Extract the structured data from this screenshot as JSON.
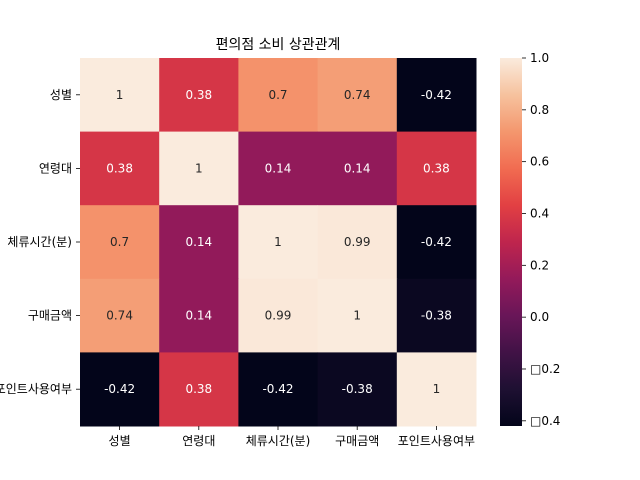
{
  "chart_data": {
    "type": "heatmap",
    "title": "편의점 소비 상관관계",
    "row_labels": [
      "성별",
      "연령대",
      "체류시간(분)",
      "구매금액",
      "포인트사용여부"
    ],
    "col_labels": [
      "성별",
      "연령대",
      "체류시간(분)",
      "구매금액",
      "포인트사용여부"
    ],
    "values": [
      [
        1,
        0.38,
        0.7,
        0.74,
        -0.42
      ],
      [
        0.38,
        1,
        0.14,
        0.14,
        0.38
      ],
      [
        0.7,
        0.14,
        1,
        0.99,
        -0.42
      ],
      [
        0.74,
        0.14,
        0.99,
        1,
        -0.38
      ],
      [
        -0.42,
        0.38,
        -0.42,
        -0.38,
        1
      ]
    ],
    "cell_labels": [
      [
        "1",
        "0.38",
        "0.7",
        "0.74",
        "-0.42"
      ],
      [
        "0.38",
        "1",
        "0.14",
        "0.14",
        "0.38"
      ],
      [
        "0.7",
        "0.14",
        "1",
        "0.99",
        "-0.42"
      ],
      [
        "0.74",
        "0.14",
        "0.99",
        "1",
        "-0.38"
      ],
      [
        "-0.42",
        "0.38",
        "-0.42",
        "-0.38",
        "1"
      ]
    ],
    "colorbar": {
      "range": [
        -0.42,
        1
      ],
      "ticks": [
        1.0,
        0.8,
        0.6,
        0.4,
        0.2,
        0.0,
        -0.2,
        -0.4
      ],
      "tick_labels": [
        "1.0",
        "0.8",
        "0.6",
        "0.4",
        "0.2",
        "0.0",
        "□0.2",
        "□0.4"
      ]
    },
    "colormap": "rocket"
  }
}
